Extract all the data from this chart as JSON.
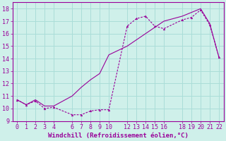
{
  "xlabel": "Windchill (Refroidissement éolien,°C)",
  "background_color": "#cff0ea",
  "grid_color": "#aaddd8",
  "line_color": "#990099",
  "xlim": [
    -0.5,
    22.5
  ],
  "ylim": [
    9,
    18.5
  ],
  "xticks": [
    0,
    1,
    2,
    3,
    4,
    6,
    7,
    8,
    9,
    10,
    12,
    13,
    14,
    15,
    16,
    18,
    19,
    20,
    21,
    22
  ],
  "yticks": [
    9,
    10,
    11,
    12,
    13,
    14,
    15,
    16,
    17,
    18
  ],
  "line1_x": [
    0,
    1,
    2,
    3,
    4,
    6,
    7,
    8,
    9,
    10,
    12,
    13,
    14,
    15,
    16,
    18,
    19,
    20,
    21,
    22
  ],
  "line1_y": [
    10.7,
    10.3,
    10.6,
    10.0,
    10.1,
    9.5,
    9.5,
    9.8,
    9.9,
    9.9,
    16.6,
    17.2,
    17.4,
    16.6,
    16.4,
    17.1,
    17.3,
    17.9,
    16.7,
    14.1
  ],
  "line2_x": [
    0,
    1,
    2,
    3,
    4,
    6,
    7,
    8,
    9,
    10,
    12,
    13,
    14,
    15,
    16,
    18,
    19,
    20,
    21,
    22
  ],
  "line2_y": [
    10.7,
    10.3,
    10.7,
    10.2,
    10.2,
    11.0,
    11.7,
    12.3,
    12.8,
    14.3,
    15.0,
    15.5,
    16.0,
    16.5,
    17.0,
    17.4,
    17.7,
    18.0,
    16.8,
    14.1
  ],
  "xlabel_fontsize": 6.5,
  "tick_fontsize": 6.0
}
